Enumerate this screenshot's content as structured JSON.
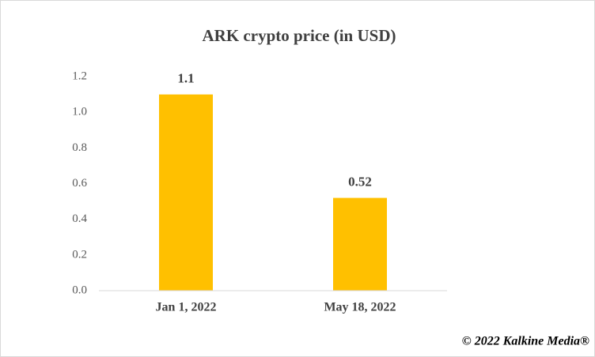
{
  "chart_data": {
    "type": "bar",
    "title": "ARK crypto price (in USD)",
    "categories": [
      "Jan 1, 2022",
      "May 18, 2022"
    ],
    "values": [
      1.1,
      0.52
    ],
    "color": "#ffc000",
    "ylim": [
      0,
      1.2
    ],
    "yticks": [
      {
        "value": 0,
        "label": "0.0"
      },
      0.2,
      0.4,
      0.6,
      0.8,
      {
        "value": 1,
        "label": "1.0"
      },
      1.2
    ],
    "grid": false,
    "credit": "© 2022 Kalkine Media®"
  }
}
